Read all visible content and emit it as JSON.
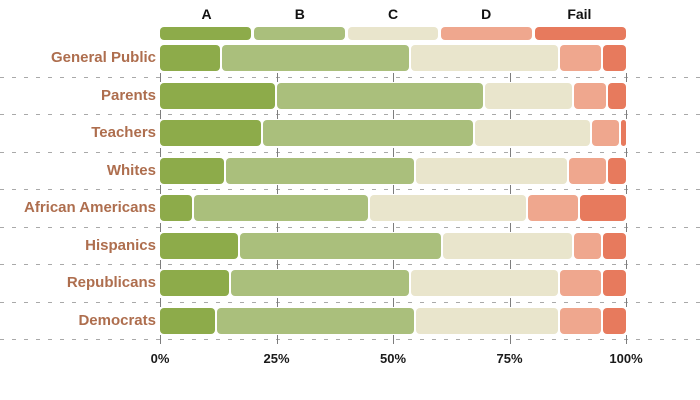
{
  "chart_data": {
    "type": "bar",
    "stacked": true,
    "orientation": "horizontal",
    "title": "",
    "categories": [
      "General Public",
      "Parents",
      "Teachers",
      "Whites",
      "African Americans",
      "Hispanics",
      "Republicans",
      "Democrats"
    ],
    "legend": [
      "A",
      "B",
      "C",
      "D",
      "Fail"
    ],
    "legend_position": "top",
    "series": [
      {
        "name": "A",
        "values": [
          13,
          25,
          22,
          14,
          7,
          17,
          15,
          12
        ]
      },
      {
        "name": "B",
        "values": [
          41,
          45,
          46,
          41,
          38,
          44,
          39,
          43
        ]
      },
      {
        "name": "C",
        "values": [
          32,
          19,
          25,
          33,
          34,
          28,
          32,
          31
        ]
      },
      {
        "name": "D",
        "values": [
          9,
          7,
          6,
          8,
          11,
          6,
          9,
          9
        ]
      },
      {
        "name": "Fail",
        "values": [
          5,
          4,
          1,
          4,
          10,
          5,
          5,
          5
        ]
      }
    ],
    "x_ticks": [
      "0%",
      "25%",
      "50%",
      "75%",
      "100%"
    ],
    "xlim": [
      0,
      100
    ],
    "grid": "dashed horizontal separators between rows with small vertical ticks at 0/25/50/75/100%",
    "colors": {
      "A": "#8dab4a",
      "B": "#aabf7c",
      "C": "#e9e5cc",
      "D": "#efa78e",
      "Fail": "#e77a5d"
    },
    "text_colors": {
      "category_labels": "#ae6e4e",
      "axis_labels": "#1a1a1a",
      "legend_labels": "#111111"
    }
  }
}
